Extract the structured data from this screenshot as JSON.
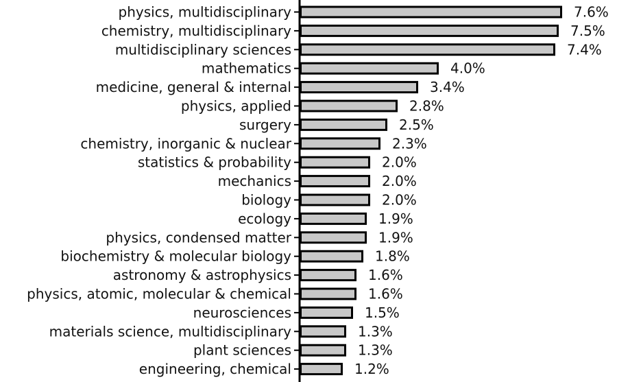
{
  "chart_data": {
    "type": "bar",
    "orientation": "horizontal",
    "categories": [
      "physics, multidisciplinary",
      "chemistry, multidisciplinary",
      "multidisciplinary sciences",
      "mathematics",
      "medicine, general & internal",
      "physics, applied",
      "surgery",
      "chemistry, inorganic & nuclear",
      "statistics & probability",
      "mechanics",
      "biology",
      "ecology",
      "physics, condensed matter",
      "biochemistry & molecular biology",
      "astronomy & astrophysics",
      "physics, atomic, molecular & chemical",
      "neurosciences",
      "materials science, multidisciplinary",
      "plant sciences",
      "engineering, chemical"
    ],
    "values": [
      7.6,
      7.5,
      7.4,
      4.0,
      3.4,
      2.8,
      2.5,
      2.3,
      2.0,
      2.0,
      2.0,
      1.9,
      1.9,
      1.8,
      1.6,
      1.6,
      1.5,
      1.3,
      1.3,
      1.2
    ],
    "value_labels": [
      "7.6%",
      "7.5%",
      "7.4%",
      "4.0%",
      "3.4%",
      "2.8%",
      "2.5%",
      "2.3%",
      "2.0%",
      "2.0%",
      "2.0%",
      "1.9%",
      "1.9%",
      "1.8%",
      "1.6%",
      "1.6%",
      "1.5%",
      "1.3%",
      "1.3%",
      "1.2%"
    ],
    "unit": "%",
    "xlim": [
      0,
      8
    ],
    "grid": false,
    "bar_color": "#c8c8c8",
    "edge_color": "#000000"
  }
}
